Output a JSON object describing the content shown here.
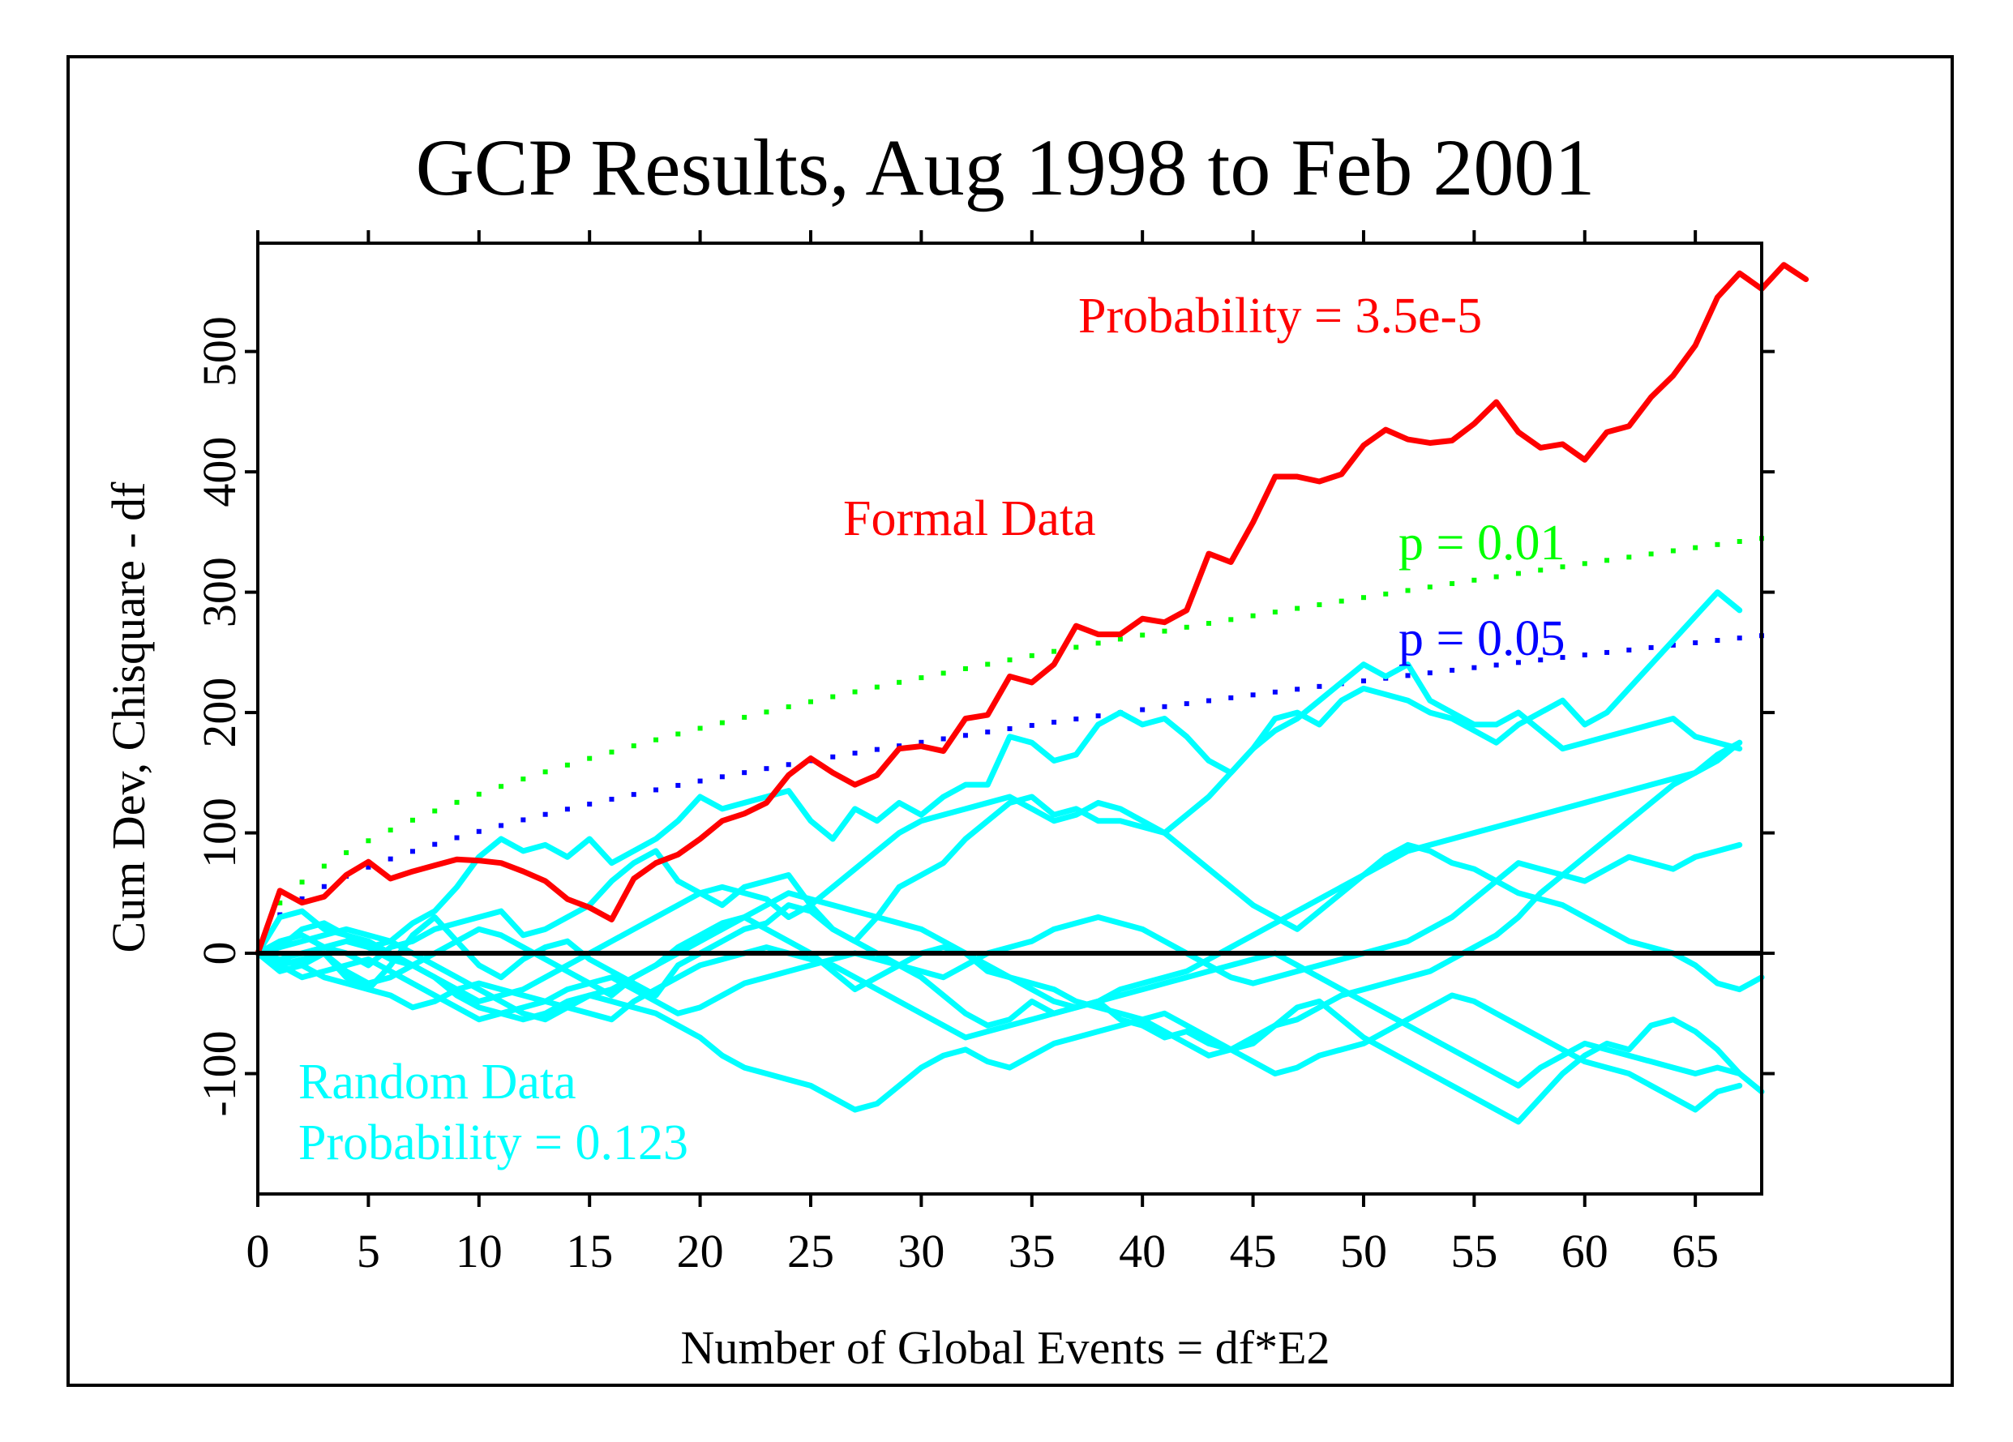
{
  "chart_data": {
    "type": "line",
    "title": "GCP Results, Aug 1998 to Feb 2001",
    "xlabel": "Number of Global Events = df*E2",
    "ylabel": "Cum Dev, Chisquare - df",
    "xlim": [
      0,
      68
    ],
    "ylim": [
      -200,
      590
    ],
    "x_ticks": [
      0,
      5,
      10,
      15,
      20,
      25,
      30,
      35,
      40,
      45,
      50,
      55,
      60,
      65
    ],
    "y_ticks": [
      -100,
      0,
      100,
      200,
      300,
      400,
      500
    ],
    "grid": false,
    "zero_line": true,
    "colors": {
      "formal": "#ff0000",
      "random": "#00ffff",
      "p01": "#00ff00",
      "p05": "#0000ff",
      "axes": "#000000"
    },
    "annotations": {
      "probability": "Probability = 3.5e-5",
      "formal": "Formal Data",
      "p01": "p = 0.01",
      "p05": "p = 0.05",
      "random_1": "Random Data",
      "random_2": "Probability = 0.123"
    },
    "envelopes": [
      {
        "name": "p = 0.01",
        "color": "#00ff00",
        "coef": 41.8
      },
      {
        "name": "p = 0.05",
        "color": "#0000ff",
        "coef": 32.0
      }
    ],
    "series": [
      {
        "name": "Formal Data",
        "color": "#ff0000",
        "values": [
          0,
          52,
          42,
          47,
          65,
          76,
          62,
          68,
          73,
          78,
          77,
          75,
          68,
          60,
          45,
          38,
          28,
          62,
          75,
          82,
          95,
          110,
          116,
          125,
          148,
          162,
          150,
          140,
          148,
          170,
          172,
          168,
          195,
          198,
          230,
          225,
          240,
          272,
          265,
          265,
          278,
          275,
          285,
          332,
          325,
          358,
          396,
          396,
          392,
          398,
          422,
          435,
          427,
          424,
          426,
          440,
          458,
          433,
          420,
          423,
          410,
          433,
          438,
          462,
          480,
          505,
          545,
          565,
          552,
          572,
          560
        ]
      },
      {
        "color": "#00ffff",
        "values": [
          0,
          30,
          35,
          20,
          15,
          5,
          10,
          25,
          35,
          55,
          80,
          95,
          85,
          90,
          80,
          95,
          75,
          85,
          95,
          110,
          130,
          120,
          125,
          130,
          135,
          110,
          95,
          120,
          110,
          125,
          115,
          130,
          140,
          140,
          180,
          175,
          160,
          165,
          190,
          200,
          190,
          195,
          180,
          160,
          150,
          170,
          185,
          195,
          210,
          225,
          240,
          230,
          240,
          210,
          200,
          190,
          190,
          200,
          185,
          170,
          175,
          180,
          185,
          190,
          195,
          180,
          175,
          170
        ]
      },
      {
        "color": "#00ffff",
        "values": [
          0,
          -5,
          -10,
          0,
          -20,
          -30,
          -10,
          15,
          30,
          10,
          -10,
          -20,
          -5,
          5,
          10,
          -5,
          -15,
          -25,
          -35,
          -10,
          0,
          10,
          20,
          25,
          40,
          35,
          20,
          10,
          30,
          55,
          65,
          75,
          95,
          110,
          125,
          130,
          115,
          120,
          110,
          110,
          105,
          100,
          115,
          130,
          150,
          170,
          195,
          200,
          190,
          210,
          220,
          215,
          210,
          200,
          195,
          185,
          175,
          190,
          200,
          210,
          190,
          200,
          220,
          240,
          260,
          280,
          300,
          285
        ]
      },
      {
        "color": "#00ffff",
        "values": [
          0,
          10,
          15,
          5,
          0,
          -10,
          5,
          10,
          20,
          25,
          30,
          35,
          15,
          20,
          30,
          40,
          60,
          75,
          85,
          60,
          50,
          40,
          55,
          60,
          65,
          40,
          20,
          10,
          0,
          -10,
          -20,
          -35,
          -50,
          -60,
          -55,
          -40,
          -50,
          -45,
          -40,
          -55,
          -60,
          -70,
          -65,
          -75,
          -80,
          -75,
          -60,
          -45,
          -40,
          -55,
          -70,
          -80,
          -90,
          -100,
          -110,
          -120,
          -130,
          -140,
          -120,
          -100,
          -85,
          -75,
          -80,
          -60,
          -55,
          -65,
          -80,
          -100,
          -115
        ]
      },
      {
        "color": "#00ffff",
        "values": [
          0,
          -10,
          -5,
          0,
          -15,
          -25,
          -20,
          -10,
          0,
          10,
          20,
          15,
          5,
          -5,
          -15,
          -25,
          -35,
          -20,
          -10,
          5,
          15,
          25,
          30,
          20,
          10,
          0,
          -15,
          -30,
          -20,
          -10,
          0,
          5,
          0,
          -15,
          -20,
          -25,
          -30,
          -40,
          -45,
          -50,
          -55,
          -65,
          -75,
          -85,
          -80,
          -70,
          -60,
          -55,
          -45,
          -35,
          -30,
          -25,
          -20,
          -15,
          -5,
          5,
          15,
          30,
          50,
          65,
          80,
          95,
          110,
          125,
          140,
          150,
          160,
          175
        ]
      },
      {
        "color": "#00ffff",
        "values": [
          0,
          5,
          20,
          25,
          15,
          10,
          0,
          -10,
          -20,
          -30,
          -40,
          -35,
          -30,
          -20,
          -10,
          0,
          10,
          20,
          30,
          40,
          50,
          55,
          50,
          45,
          30,
          40,
          55,
          70,
          85,
          100,
          110,
          115,
          120,
          125,
          130,
          120,
          110,
          115,
          125,
          120,
          110,
          100,
          85,
          70,
          55,
          40,
          30,
          20,
          35,
          50,
          65,
          80,
          90,
          85,
          75,
          70,
          60,
          50,
          45,
          40,
          30,
          20,
          10,
          5,
          0,
          -10,
          -25,
          -30,
          -20
        ]
      },
      {
        "color": "#00ffff",
        "values": [
          0,
          -15,
          -10,
          -20,
          -25,
          -30,
          -35,
          -45,
          -40,
          -30,
          -25,
          -30,
          -35,
          -40,
          -30,
          -25,
          -20,
          -30,
          -40,
          -50,
          -45,
          -35,
          -25,
          -20,
          -15,
          -10,
          -5,
          0,
          -5,
          -10,
          -15,
          -20,
          -10,
          0,
          5,
          10,
          20,
          25,
          30,
          25,
          20,
          10,
          0,
          -10,
          -20,
          -25,
          -20,
          -15,
          -10,
          -5,
          0,
          5,
          10,
          20,
          30,
          45,
          60,
          75,
          70,
          65,
          60,
          70,
          80,
          75,
          70,
          80,
          85,
          90
        ]
      },
      {
        "color": "#00ffff",
        "values": [
          0,
          -5,
          0,
          5,
          10,
          5,
          -5,
          -10,
          -20,
          -35,
          -45,
          -50,
          -55,
          -50,
          -40,
          -35,
          -40,
          -45,
          -50,
          -60,
          -70,
          -85,
          -95,
          -100,
          -105,
          -110,
          -120,
          -130,
          -125,
          -110,
          -95,
          -85,
          -80,
          -90,
          -95,
          -85,
          -75,
          -70,
          -65,
          -60,
          -55,
          -50,
          -60,
          -70,
          -80,
          -90,
          -100,
          -95,
          -85,
          -80,
          -75,
          -65,
          -55,
          -45,
          -35,
          -40,
          -50,
          -60,
          -70,
          -80,
          -90,
          -95,
          -100,
          -110,
          -120,
          -130,
          -115,
          -110
        ]
      },
      {
        "color": "#00ffff",
        "values": [
          0,
          5,
          10,
          15,
          20,
          15,
          10,
          0,
          -10,
          -20,
          -30,
          -40,
          -50,
          -55,
          -45,
          -35,
          -30,
          -20,
          -10,
          0,
          10,
          20,
          30,
          40,
          50,
          45,
          40,
          35,
          30,
          25,
          20,
          10,
          0,
          -10,
          -20,
          -30,
          -40,
          -45,
          -40,
          -30,
          -25,
          -20,
          -15,
          -5,
          5,
          15,
          25,
          35,
          45,
          55,
          65,
          75,
          85,
          90,
          95,
          100,
          105,
          110,
          115,
          120,
          125,
          130,
          135,
          140,
          145,
          150,
          165,
          175
        ]
      },
      {
        "color": "#00ffff",
        "values": [
          0,
          -10,
          -20,
          -15,
          -10,
          -5,
          -15,
          -25,
          -35,
          -45,
          -55,
          -50,
          -45,
          -40,
          -45,
          -50,
          -55,
          -40,
          -30,
          -20,
          -10,
          -5,
          0,
          5,
          0,
          -5,
          -10,
          -20,
          -30,
          -40,
          -50,
          -60,
          -70,
          -65,
          -60,
          -55,
          -50,
          -45,
          -40,
          -35,
          -30,
          -25,
          -20,
          -15,
          -10,
          -5,
          0,
          -10,
          -20,
          -30,
          -40,
          -50,
          -60,
          -70,
          -80,
          -90,
          -100,
          -110,
          -95,
          -85,
          -75,
          -80,
          -85,
          -90,
          -95,
          -100,
          -95,
          -100
        ]
      }
    ]
  }
}
